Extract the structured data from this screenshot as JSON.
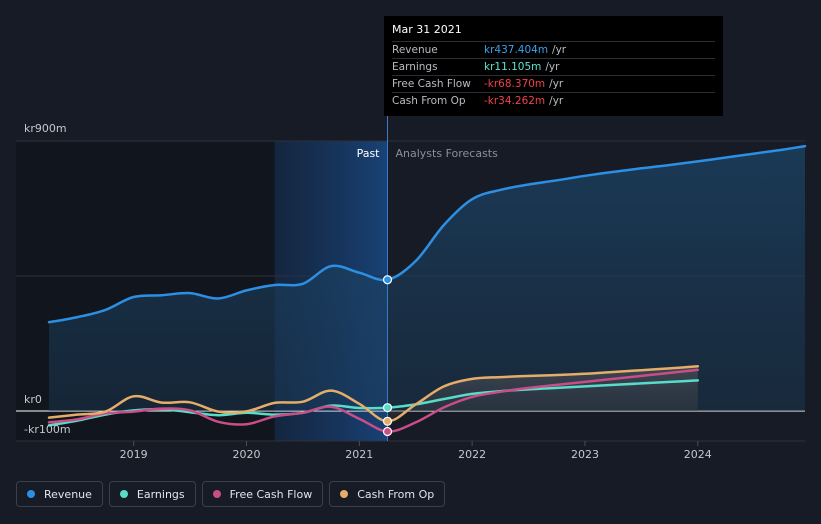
{
  "chart_data": {
    "type": "line",
    "currency": "kr",
    "y_labels": {
      "top": "kr900m",
      "zero": "kr0",
      "bottom": "-kr100m"
    },
    "ylim": [
      -100,
      900
    ],
    "xlim": [
      2018.25,
      2024.95
    ],
    "x_ticks": [
      {
        "label": "2019",
        "x": 2019.0
      },
      {
        "label": "2020",
        "x": 2020.0
      },
      {
        "label": "2021",
        "x": 2021.0
      },
      {
        "label": "2022",
        "x": 2022.0
      },
      {
        "label": "2023",
        "x": 2023.0
      },
      {
        "label": "2024",
        "x": 2024.0
      }
    ],
    "divider_x": 2021.25,
    "highlight_from_x": 2020.25,
    "past_label": "Past",
    "forecast_label": "Analysts Forecasts",
    "series": [
      {
        "name": "Revenue",
        "color": "#2d8fe3",
        "fill": true,
        "points": [
          [
            2018.25,
            296
          ],
          [
            2018.5,
            313
          ],
          [
            2018.75,
            337
          ],
          [
            2019.0,
            380
          ],
          [
            2019.25,
            386
          ],
          [
            2019.5,
            393
          ],
          [
            2019.75,
            375
          ],
          [
            2020.0,
            402
          ],
          [
            2020.25,
            420
          ],
          [
            2020.5,
            424
          ],
          [
            2020.75,
            483
          ],
          [
            2021.0,
            461
          ],
          [
            2021.25,
            437.4
          ],
          [
            2021.5,
            500
          ],
          [
            2021.75,
            620
          ],
          [
            2022.0,
            706
          ],
          [
            2022.25,
            737
          ],
          [
            2022.5,
            755
          ],
          [
            2022.75,
            769
          ],
          [
            2023.0,
            784
          ],
          [
            2023.25,
            797
          ],
          [
            2023.5,
            809
          ],
          [
            2023.75,
            820
          ],
          [
            2024.0,
            832
          ],
          [
            2024.25,
            845
          ],
          [
            2024.5,
            858
          ],
          [
            2024.75,
            871
          ],
          [
            2024.95,
            883
          ]
        ]
      },
      {
        "name": "Earnings",
        "color": "#57dcc9",
        "fill": false,
        "points": [
          [
            2018.25,
            -48
          ],
          [
            2018.5,
            -32
          ],
          [
            2018.75,
            -12
          ],
          [
            2019.0,
            2
          ],
          [
            2019.25,
            6
          ],
          [
            2019.5,
            -4
          ],
          [
            2019.75,
            -14
          ],
          [
            2020.0,
            -6
          ],
          [
            2020.25,
            -12
          ],
          [
            2020.5,
            -6
          ],
          [
            2020.75,
            18
          ],
          [
            2021.0,
            10
          ],
          [
            2021.25,
            11.1
          ],
          [
            2021.5,
            22
          ],
          [
            2021.75,
            40
          ],
          [
            2022.0,
            57
          ],
          [
            2022.25,
            66
          ],
          [
            2022.5,
            72
          ],
          [
            2022.75,
            77
          ],
          [
            2023.0,
            82
          ],
          [
            2023.25,
            87
          ],
          [
            2023.5,
            92
          ],
          [
            2023.75,
            97
          ],
          [
            2024.0,
            102
          ]
        ]
      },
      {
        "name": "Free Cash Flow",
        "color": "#c94d87",
        "fill": false,
        "points": [
          [
            2018.25,
            -38
          ],
          [
            2018.5,
            -28
          ],
          [
            2018.75,
            -8
          ],
          [
            2019.0,
            -2
          ],
          [
            2019.25,
            8
          ],
          [
            2019.5,
            2
          ],
          [
            2019.75,
            -36
          ],
          [
            2020.0,
            -44
          ],
          [
            2020.25,
            -18
          ],
          [
            2020.5,
            -6
          ],
          [
            2020.75,
            14
          ],
          [
            2021.0,
            -26
          ],
          [
            2021.25,
            -68.4
          ],
          [
            2021.5,
            -38
          ],
          [
            2021.75,
            12
          ],
          [
            2022.0,
            47
          ],
          [
            2022.25,
            64
          ],
          [
            2022.5,
            77
          ],
          [
            2022.75,
            87
          ],
          [
            2023.0,
            97
          ],
          [
            2023.25,
            107
          ],
          [
            2023.5,
            117
          ],
          [
            2023.75,
            127
          ],
          [
            2024.0,
            137
          ]
        ]
      },
      {
        "name": "Cash From Op",
        "color": "#e4ae68",
        "fill": false,
        "points": [
          [
            2018.25,
            -22
          ],
          [
            2018.5,
            -12
          ],
          [
            2018.75,
            -2
          ],
          [
            2019.0,
            49
          ],
          [
            2019.25,
            28
          ],
          [
            2019.5,
            29
          ],
          [
            2019.75,
            -2
          ],
          [
            2020.0,
            -1
          ],
          [
            2020.25,
            27
          ],
          [
            2020.5,
            31
          ],
          [
            2020.75,
            68
          ],
          [
            2021.0,
            24
          ],
          [
            2021.25,
            -34.3
          ],
          [
            2021.5,
            22
          ],
          [
            2021.75,
            82
          ],
          [
            2022.0,
            107
          ],
          [
            2022.25,
            113
          ],
          [
            2022.5,
            117
          ],
          [
            2022.75,
            120
          ],
          [
            2023.0,
            124
          ],
          [
            2023.25,
            130
          ],
          [
            2023.5,
            136
          ],
          [
            2023.75,
            142
          ],
          [
            2024.0,
            149
          ]
        ]
      }
    ]
  },
  "tooltip": {
    "date": "Mar 31 2021",
    "rows": [
      {
        "label": "Revenue",
        "value": "kr437.404m",
        "unit": "/yr",
        "color": "#3ba1ef"
      },
      {
        "label": "Earnings",
        "value": "kr11.105m",
        "unit": "/yr",
        "color": "#5fe3d0"
      },
      {
        "label": "Free Cash Flow",
        "value": "-kr68.370m",
        "unit": "/yr",
        "color": "#f0424a"
      },
      {
        "label": "Cash From Op",
        "value": "-kr34.262m",
        "unit": "/yr",
        "color": "#f0424a"
      }
    ]
  },
  "legend": [
    {
      "label": "Revenue",
      "color": "#2d8fe3"
    },
    {
      "label": "Earnings",
      "color": "#57dcc9"
    },
    {
      "label": "Free Cash Flow",
      "color": "#c94d87"
    },
    {
      "label": "Cash From Op",
      "color": "#e4ae68"
    }
  ]
}
